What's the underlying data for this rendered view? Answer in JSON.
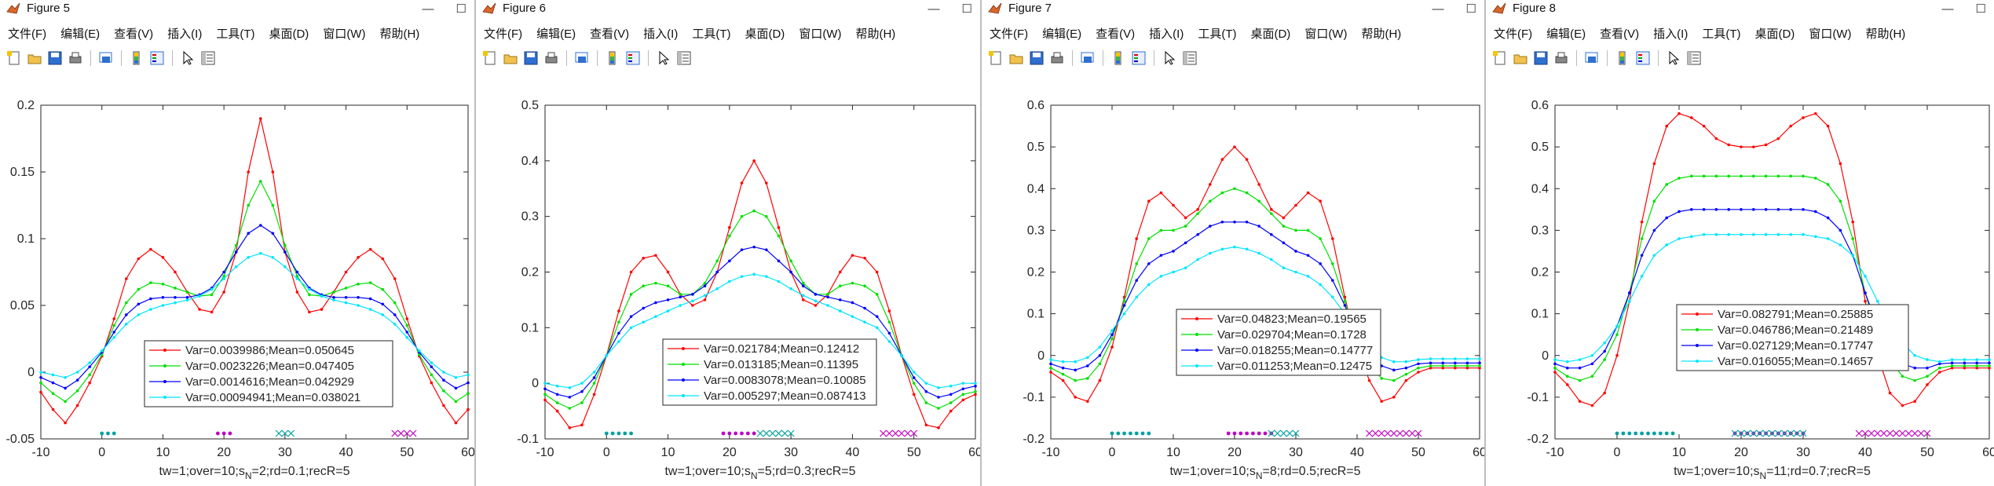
{
  "menus": [
    "文件(F)",
    "编辑(E)",
    "查看(V)",
    "插入(I)",
    "工具(T)",
    "桌面(D)",
    "窗口(W)",
    "帮助(H)"
  ],
  "window_buttons": [
    "—",
    "☐"
  ],
  "figures": [
    {
      "title": "Figure 5",
      "xlabel": "tw=1;over=10;s",
      "xlabel_sub": "N",
      "xlabel_rest": "=2;rd=0.1;recR=5",
      "ylim": [
        -0.05,
        0.2
      ],
      "yticks": [
        "0.2",
        "0.15",
        "0.1",
        "0.05",
        "0",
        "-0.05"
      ],
      "xticks": [
        "-10",
        "0",
        "10",
        "20",
        "30",
        "40",
        "50",
        "60"
      ],
      "legend": [
        "Var=0.0039986;Mean=0.050645",
        "Var=0.0023226;Mean=0.047405",
        "Var=0.0014616;Mean=0.042929",
        "Var=0.00094941;Mean=0.038021"
      ]
    },
    {
      "title": "Figure 6",
      "xlabel": "tw=1;over=10;s",
      "xlabel_sub": "N",
      "xlabel_rest": "=5;rd=0.3;recR=5",
      "ylim": [
        -0.1,
        0.5
      ],
      "yticks": [
        "0.5",
        "0.4",
        "0.3",
        "0.2",
        "0.1",
        "0",
        "-0.1"
      ],
      "xticks": [
        "-10",
        "0",
        "10",
        "20",
        "30",
        "40",
        "50",
        "60"
      ],
      "legend": [
        "Var=0.021784;Mean=0.12412",
        "Var=0.013185;Mean=0.11395",
        "Var=0.0083078;Mean=0.10085",
        "Var=0.005297;Mean=0.087413"
      ]
    },
    {
      "title": "Figure 7",
      "xlabel": "tw=1;over=10;s",
      "xlabel_sub": "N",
      "xlabel_rest": "=8;rd=0.5;recR=5",
      "ylim": [
        -0.2,
        0.6
      ],
      "yticks": [
        "0.6",
        "0.5",
        "0.4",
        "0.3",
        "0.2",
        "0.1",
        "0",
        "-0.1",
        "-0.2"
      ],
      "xticks": [
        "-10",
        "0",
        "10",
        "20",
        "30",
        "40",
        "50",
        "60"
      ],
      "legend": [
        "Var=0.04823;Mean=0.19565",
        "Var=0.029704;Mean=0.1728",
        "Var=0.018255;Mean=0.14777",
        "Var=0.011253;Mean=0.12475"
      ]
    },
    {
      "title": "Figure 8",
      "xlabel": "tw=1;over=10;s",
      "xlabel_sub": "N",
      "xlabel_rest": "=11;rd=0.7;recR=5",
      "ylim": [
        -0.2,
        0.6
      ],
      "yticks": [
        "0.6",
        "0.5",
        "0.4",
        "0.3",
        "0.2",
        "0.1",
        "0",
        "-0.1",
        "-0.2"
      ],
      "xticks": [
        "-10",
        "0",
        "10",
        "20",
        "30",
        "40",
        "50",
        "60"
      ],
      "legend": [
        "Var=0.082791;Mean=0.25885",
        "Var=0.046786;Mean=0.21489",
        "Var=0.027129;Mean=0.17747",
        "Var=0.016055;Mean=0.14657"
      ]
    }
  ],
  "colors": {
    "series": [
      "#ff0000",
      "#00e000",
      "#0000ff",
      "#00e5ff"
    ],
    "markers_teal": "#00a0a0",
    "markers_magenta": "#c000c0"
  },
  "chart_data": [
    {
      "type": "line",
      "x": [
        -10,
        -8,
        -6,
        -4,
        -2,
        0,
        2,
        4,
        6,
        8,
        10,
        12,
        14,
        16,
        18,
        20,
        22,
        24,
        26,
        28,
        30,
        32,
        34,
        36,
        38,
        40,
        42,
        44,
        46,
        48,
        50,
        52,
        54,
        56,
        58,
        60
      ],
      "xlim": [
        -10,
        60
      ],
      "ylim": [
        -0.05,
        0.2
      ],
      "series": [
        {
          "name": "Var=0.0039986;Mean=0.050645",
          "values": [
            -0.015,
            -0.028,
            -0.038,
            -0.025,
            -0.008,
            0.012,
            0.04,
            0.07,
            0.085,
            0.092,
            0.086,
            0.075,
            0.06,
            0.047,
            0.045,
            0.06,
            0.09,
            0.15,
            0.19,
            0.15,
            0.09,
            0.06,
            0.045,
            0.047,
            0.06,
            0.075,
            0.086,
            0.092,
            0.085,
            0.07,
            0.04,
            0.012,
            -0.008,
            -0.025,
            -0.038,
            -0.028
          ]
        },
        {
          "name": "Var=0.0023226;Mean=0.047405",
          "values": [
            -0.008,
            -0.016,
            -0.022,
            -0.014,
            -0.002,
            0.013,
            0.035,
            0.052,
            0.062,
            0.067,
            0.066,
            0.063,
            0.06,
            0.057,
            0.058,
            0.072,
            0.095,
            0.125,
            0.143,
            0.125,
            0.095,
            0.072,
            0.058,
            0.057,
            0.06,
            0.063,
            0.066,
            0.067,
            0.062,
            0.052,
            0.035,
            0.013,
            -0.002,
            -0.014,
            -0.022,
            -0.016
          ]
        },
        {
          "name": "Var=0.0014616;Mean=0.042929",
          "values": [
            -0.004,
            -0.008,
            -0.012,
            -0.006,
            0.004,
            0.015,
            0.03,
            0.043,
            0.051,
            0.055,
            0.056,
            0.056,
            0.056,
            0.058,
            0.063,
            0.075,
            0.09,
            0.104,
            0.11,
            0.104,
            0.09,
            0.075,
            0.063,
            0.058,
            0.056,
            0.056,
            0.056,
            0.055,
            0.051,
            0.043,
            0.03,
            0.015,
            0.004,
            -0.006,
            -0.012,
            -0.008
          ]
        },
        {
          "name": "Var=0.00094941;Mean=0.038021",
          "values": [
            0.0,
            -0.002,
            -0.004,
            0.0,
            0.007,
            0.016,
            0.026,
            0.036,
            0.043,
            0.047,
            0.05,
            0.052,
            0.054,
            0.057,
            0.062,
            0.07,
            0.079,
            0.086,
            0.089,
            0.086,
            0.079,
            0.07,
            0.062,
            0.057,
            0.054,
            0.052,
            0.05,
            0.047,
            0.043,
            0.036,
            0.026,
            0.016,
            0.007,
            0.0,
            -0.004,
            -0.002
          ]
        }
      ]
    },
    {
      "type": "line",
      "x": [
        -10,
        -8,
        -6,
        -4,
        -2,
        0,
        2,
        4,
        6,
        8,
        10,
        12,
        14,
        16,
        18,
        20,
        22,
        24,
        26,
        28,
        30,
        32,
        34,
        36,
        38,
        40,
        42,
        44,
        46,
        48,
        50,
        52,
        54,
        56,
        58,
        60
      ],
      "xlim": [
        -10,
        60
      ],
      "ylim": [
        -0.1,
        0.5
      ],
      "series": [
        {
          "name": "Var=0.021784;Mean=0.12412",
          "values": [
            -0.03,
            -0.05,
            -0.08,
            -0.075,
            -0.02,
            0.05,
            0.13,
            0.2,
            0.225,
            0.23,
            0.2,
            0.16,
            0.14,
            0.15,
            0.2,
            0.28,
            0.36,
            0.4,
            0.36,
            0.28,
            0.2,
            0.15,
            0.14,
            0.16,
            0.2,
            0.23,
            0.225,
            0.2,
            0.13,
            0.05,
            -0.02,
            -0.075,
            -0.08,
            -0.05,
            -0.03,
            -0.02
          ]
        },
        {
          "name": "Var=0.013185;Mean=0.11395",
          "values": [
            -0.02,
            -0.035,
            -0.045,
            -0.035,
            0.0,
            0.05,
            0.11,
            0.16,
            0.175,
            0.18,
            0.175,
            0.16,
            0.16,
            0.18,
            0.22,
            0.265,
            0.3,
            0.31,
            0.3,
            0.265,
            0.22,
            0.18,
            0.16,
            0.16,
            0.175,
            0.18,
            0.175,
            0.16,
            0.11,
            0.05,
            0.0,
            -0.035,
            -0.045,
            -0.035,
            -0.02,
            -0.015
          ]
        },
        {
          "name": "Var=0.0083078;Mean=0.10085",
          "values": [
            -0.01,
            -0.02,
            -0.025,
            -0.015,
            0.01,
            0.05,
            0.09,
            0.12,
            0.135,
            0.145,
            0.15,
            0.155,
            0.16,
            0.175,
            0.2,
            0.22,
            0.24,
            0.245,
            0.24,
            0.22,
            0.2,
            0.175,
            0.16,
            0.155,
            0.15,
            0.145,
            0.135,
            0.12,
            0.09,
            0.05,
            0.01,
            -0.015,
            -0.025,
            -0.02,
            -0.01,
            -0.005
          ]
        },
        {
          "name": "Var=0.005297;Mean=0.087413",
          "values": [
            0.0,
            -0.005,
            -0.008,
            0.0,
            0.02,
            0.05,
            0.075,
            0.1,
            0.11,
            0.12,
            0.13,
            0.14,
            0.148,
            0.158,
            0.17,
            0.183,
            0.192,
            0.196,
            0.192,
            0.183,
            0.17,
            0.158,
            0.148,
            0.14,
            0.13,
            0.12,
            0.11,
            0.1,
            0.075,
            0.05,
            0.02,
            0.0,
            -0.008,
            -0.005,
            0.0,
            0.0
          ]
        }
      ]
    },
    {
      "type": "line",
      "x": [
        -10,
        -8,
        -6,
        -4,
        -2,
        0,
        2,
        4,
        6,
        8,
        10,
        12,
        14,
        16,
        18,
        20,
        22,
        24,
        26,
        28,
        30,
        32,
        34,
        36,
        38,
        40,
        42,
        44,
        46,
        48,
        50,
        52,
        54,
        56,
        58,
        60
      ],
      "xlim": [
        -10,
        60
      ],
      "ylim": [
        -0.2,
        0.6
      ],
      "series": [
        {
          "name": "Var=0.04823;Mean=0.19565",
          "values": [
            -0.04,
            -0.06,
            -0.1,
            -0.11,
            -0.06,
            0.02,
            0.14,
            0.28,
            0.37,
            0.39,
            0.36,
            0.33,
            0.35,
            0.41,
            0.47,
            0.5,
            0.47,
            0.41,
            0.35,
            0.33,
            0.36,
            0.39,
            0.37,
            0.28,
            0.14,
            0.02,
            -0.06,
            -0.11,
            -0.1,
            -0.06,
            -0.04,
            -0.03,
            -0.03,
            -0.03,
            -0.03,
            -0.03
          ]
        },
        {
          "name": "Var=0.029704;Mean=0.1728",
          "values": [
            -0.03,
            -0.045,
            -0.06,
            -0.055,
            -0.02,
            0.04,
            0.13,
            0.22,
            0.28,
            0.3,
            0.3,
            0.31,
            0.34,
            0.37,
            0.39,
            0.4,
            0.39,
            0.37,
            0.34,
            0.31,
            0.3,
            0.3,
            0.28,
            0.22,
            0.13,
            0.04,
            -0.02,
            -0.055,
            -0.06,
            -0.045,
            -0.03,
            -0.025,
            -0.025,
            -0.025,
            -0.025,
            -0.025
          ]
        },
        {
          "name": "Var=0.018255;Mean=0.14777",
          "values": [
            -0.02,
            -0.03,
            -0.035,
            -0.025,
            0.0,
            0.05,
            0.12,
            0.18,
            0.22,
            0.24,
            0.25,
            0.27,
            0.29,
            0.31,
            0.32,
            0.32,
            0.32,
            0.31,
            0.29,
            0.27,
            0.25,
            0.24,
            0.22,
            0.18,
            0.12,
            0.05,
            0.0,
            -0.025,
            -0.035,
            -0.03,
            -0.02,
            -0.018,
            -0.018,
            -0.018,
            -0.018,
            -0.018
          ]
        },
        {
          "name": "Var=0.011253;Mean=0.12475",
          "values": [
            -0.01,
            -0.015,
            -0.015,
            -0.005,
            0.02,
            0.06,
            0.1,
            0.14,
            0.17,
            0.19,
            0.2,
            0.21,
            0.23,
            0.245,
            0.255,
            0.26,
            0.255,
            0.245,
            0.23,
            0.21,
            0.2,
            0.19,
            0.17,
            0.14,
            0.1,
            0.06,
            0.02,
            -0.005,
            -0.015,
            -0.015,
            -0.01,
            -0.008,
            -0.008,
            -0.008,
            -0.008,
            -0.008
          ]
        }
      ]
    },
    {
      "type": "line",
      "x": [
        -10,
        -8,
        -6,
        -4,
        -2,
        0,
        2,
        4,
        6,
        8,
        10,
        12,
        14,
        16,
        18,
        20,
        22,
        24,
        26,
        28,
        30,
        32,
        34,
        36,
        38,
        40,
        42,
        44,
        46,
        48,
        50,
        52,
        54,
        56,
        58,
        60
      ],
      "xlim": [
        -10,
        60
      ],
      "ylim": [
        -0.2,
        0.6
      ],
      "series": [
        {
          "name": "Var=0.082791;Mean=0.25885",
          "values": [
            -0.04,
            -0.07,
            -0.11,
            -0.12,
            -0.09,
            0.0,
            0.13,
            0.32,
            0.46,
            0.55,
            0.58,
            0.57,
            0.55,
            0.52,
            0.505,
            0.5,
            0.5,
            0.505,
            0.52,
            0.55,
            0.57,
            0.58,
            0.55,
            0.46,
            0.32,
            0.13,
            0.0,
            -0.09,
            -0.12,
            -0.11,
            -0.07,
            -0.04,
            -0.03,
            -0.03,
            -0.03,
            -0.03
          ]
        },
        {
          "name": "Var=0.046786;Mean=0.21489",
          "values": [
            -0.03,
            -0.05,
            -0.06,
            -0.05,
            -0.01,
            0.05,
            0.15,
            0.28,
            0.37,
            0.41,
            0.425,
            0.43,
            0.43,
            0.43,
            0.43,
            0.43,
            0.43,
            0.43,
            0.43,
            0.43,
            0.43,
            0.425,
            0.41,
            0.37,
            0.28,
            0.15,
            0.05,
            -0.01,
            -0.05,
            -0.06,
            -0.05,
            -0.03,
            -0.025,
            -0.025,
            -0.025,
            -0.025
          ]
        },
        {
          "name": "Var=0.027129;Mean=0.17747",
          "values": [
            -0.02,
            -0.03,
            -0.03,
            -0.02,
            0.01,
            0.07,
            0.15,
            0.24,
            0.3,
            0.33,
            0.345,
            0.35,
            0.35,
            0.35,
            0.35,
            0.35,
            0.35,
            0.35,
            0.35,
            0.35,
            0.35,
            0.345,
            0.33,
            0.3,
            0.24,
            0.15,
            0.07,
            0.01,
            -0.02,
            -0.03,
            -0.03,
            -0.02,
            -0.018,
            -0.018,
            -0.018,
            -0.018
          ]
        },
        {
          "name": "Var=0.016055;Mean=0.14657",
          "values": [
            -0.01,
            -0.015,
            -0.01,
            0.0,
            0.03,
            0.07,
            0.13,
            0.19,
            0.24,
            0.265,
            0.28,
            0.285,
            0.29,
            0.29,
            0.29,
            0.29,
            0.29,
            0.29,
            0.29,
            0.29,
            0.29,
            0.285,
            0.28,
            0.265,
            0.24,
            0.19,
            0.13,
            0.07,
            0.03,
            0.0,
            -0.01,
            -0.015,
            -0.01,
            -0.01,
            -0.01,
            -0.01
          ]
        }
      ]
    }
  ]
}
